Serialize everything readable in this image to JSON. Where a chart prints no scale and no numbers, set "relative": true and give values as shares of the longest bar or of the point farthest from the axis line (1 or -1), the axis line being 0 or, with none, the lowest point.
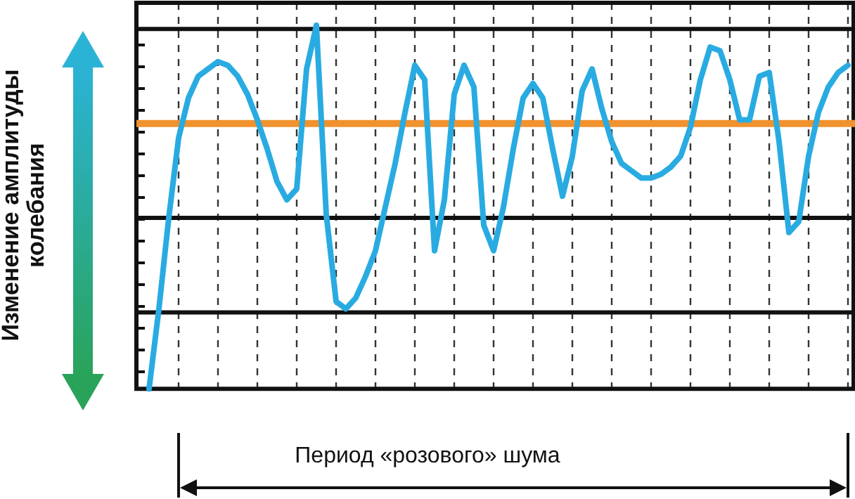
{
  "chart_data": {
    "type": "line",
    "relative": true,
    "ylabel": "Изменение амплитуды колебания",
    "annotations": [
      "Период «розового» шума"
    ],
    "grid": "x",
    "legend": false,
    "marker": "none",
    "line_style": "solid",
    "categories": [
      null,
      null,
      null,
      null,
      null,
      null,
      null,
      null,
      null,
      null,
      null,
      null,
      null,
      null,
      null,
      null,
      null,
      null,
      null,
      null,
      null,
      null,
      null,
      null,
      null,
      null,
      null,
      null,
      null,
      null,
      null,
      null,
      null,
      null,
      null,
      null,
      null,
      null,
      null,
      null,
      null,
      null,
      null,
      null,
      null,
      null,
      null,
      null,
      null,
      null,
      null,
      null,
      null,
      null,
      null,
      null,
      null,
      null,
      null,
      null,
      null,
      null,
      null,
      null,
      null,
      null,
      null,
      null,
      null,
      null,
      null,
      null
    ],
    "series": [
      {
        "color": "#29abe2",
        "values": [
          0,
          0.22,
          0.47,
          0.69,
          0.8,
          0.86,
          0.88,
          0.9,
          0.89,
          0.86,
          0.81,
          0.74,
          0.66,
          0.57,
          0.52,
          0.55,
          0.88,
          1,
          0.48,
          0.24,
          0.22,
          0.25,
          0.31,
          0.38,
          0.5,
          0.62,
          0.76,
          0.89,
          0.85,
          0.38,
          0.52,
          0.81,
          0.89,
          0.83,
          0.45,
          0.38,
          0.5,
          0.66,
          0.8,
          0.84,
          0.8,
          0.66,
          0.53,
          0.64,
          0.82,
          0.88,
          0.77,
          0.68,
          0.62,
          0.6,
          0.58,
          0.58,
          0.59,
          0.61,
          0.64,
          0.72,
          0.85,
          0.94,
          0.93,
          0.85,
          0.74,
          0.74,
          0.86,
          0.87,
          0.68,
          0.43,
          0.46,
          0.64,
          0.76,
          0.83,
          0.87,
          0.89
        ]
      }
    ],
    "ref_lines": [
      {
        "axis": "y",
        "value": 0.99,
        "color": "#111111"
      },
      {
        "axis": "y",
        "value": 0.73,
        "color": "#f0922e"
      },
      {
        "axis": "y",
        "value": 0.47,
        "color": "#111111"
      },
      {
        "axis": "y",
        "value": 0.21,
        "color": "#111111"
      }
    ]
  }
}
